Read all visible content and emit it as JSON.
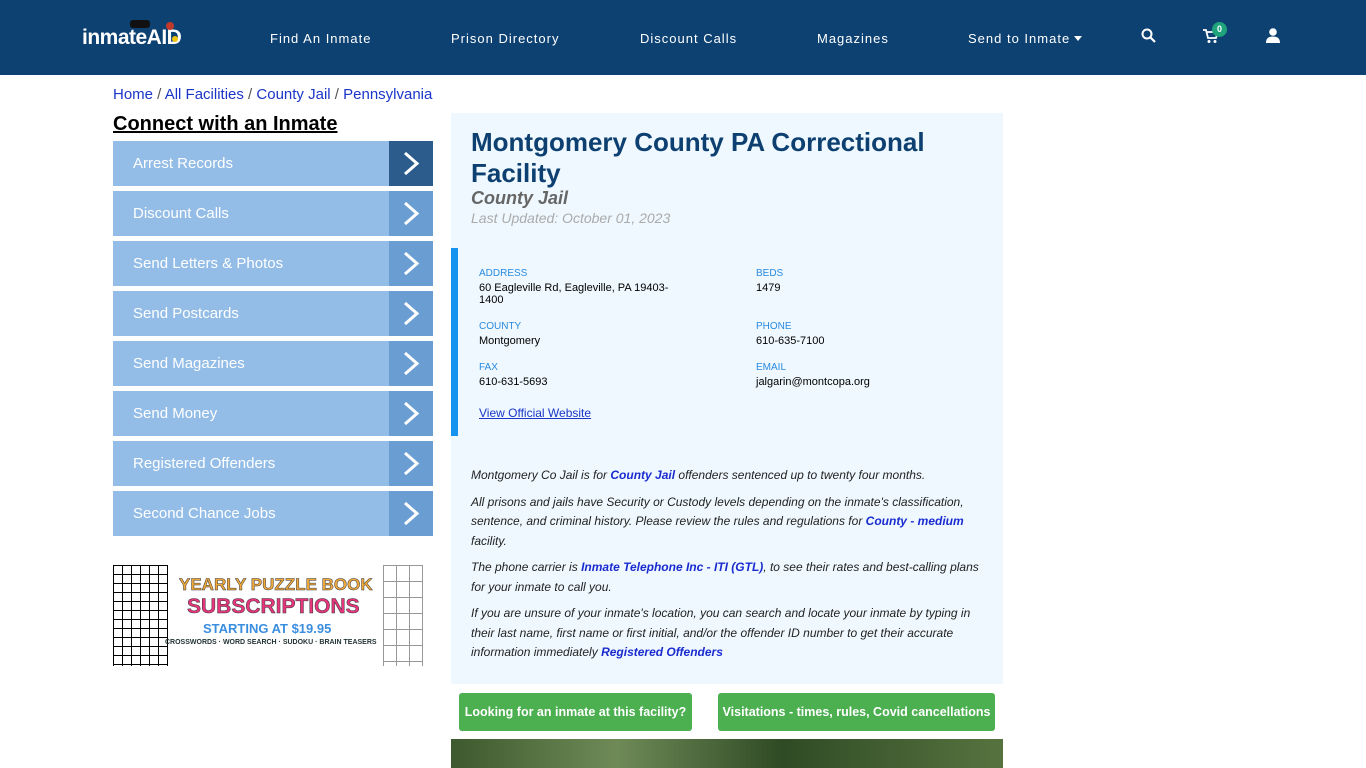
{
  "header": {
    "logo": "inmateAID",
    "nav": [
      "Find An Inmate",
      "Prison Directory",
      "Discount Calls",
      "Magazines",
      "Send to Inmate"
    ],
    "cart_count": "0",
    "icons": [
      "search-icon",
      "cart-icon",
      "user-icon"
    ],
    "bg": "#0c4172"
  },
  "breadcrumb": [
    "Home",
    "All Facilities",
    "County Jail",
    "Pennsylvania"
  ],
  "sidebar": {
    "title": "Connect with an Inmate",
    "items": [
      "Arrest Records",
      "Discount Calls",
      "Send Letters & Photos",
      "Send Postcards",
      "Send Magazines",
      "Send Money",
      "Registered Offenders",
      "Second Chance Jobs"
    ]
  },
  "ad": {
    "line1": "YEARLY PUZZLE BOOK",
    "line2": "SUBSCRIPTIONS",
    "line3": "STARTING AT $19.95",
    "line4": "CROSSWORDS · WORD SEARCH · SUDOKU · BRAIN TEASERS"
  },
  "facility": {
    "name": "Montgomery County PA Correctional Facility",
    "type": "County Jail",
    "updated": "Last Updated: October 01, 2023",
    "fields": {
      "address_label": "ADDRESS",
      "address": "60 Eagleville Rd, Eagleville, PA 19403-1400",
      "beds_label": "BEDS",
      "beds": "1479",
      "county_label": "COUNTY",
      "county": "Montgomery",
      "phone_label": "PHONE",
      "phone": "610-635-7100",
      "fax_label": "FAX",
      "fax": "610-631-5693",
      "email_label": "EMAIL",
      "email": "jalgarin@montcopa.org"
    },
    "website": "View Official Website"
  },
  "description": {
    "p1": [
      "Montgomery Co Jail is for ",
      "County Jail",
      " offenders sentenced up to twenty four months."
    ],
    "p2": [
      "All prisons and jails have Security or Custody levels depending on the inmate's classification, sentence, and criminal history. Please review the rules and regulations for ",
      "County - medium",
      " facility."
    ],
    "p3": [
      "The phone carrier is ",
      "Inmate Telephone Inc - ITI (GTL)",
      ", to see their rates and best-calling plans for your inmate to call you."
    ],
    "p4": [
      "If you are unsure of your inmate's location, you can search and locate your inmate by typing in their last name, first name or first initial, and/or the offender ID number to get their accurate information immediately ",
      "Registered Offenders",
      ""
    ]
  },
  "buttons": {
    "looking": "Looking for an inmate at this facility?",
    "visitations": "Visitations - times, rules, Covid cancellations"
  }
}
